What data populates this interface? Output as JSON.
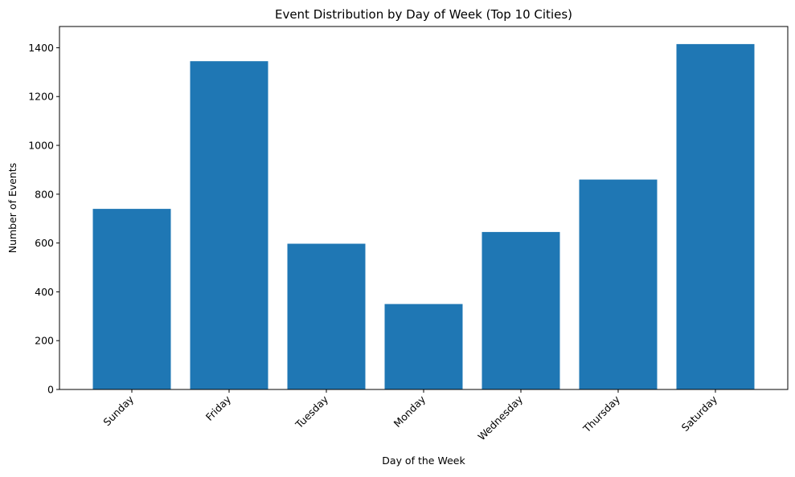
{
  "chart_data": {
    "type": "bar",
    "title": "Event Distribution by Day of Week (Top 10 Cities)",
    "xlabel": "Day of the Week",
    "ylabel": "Number of Events",
    "categories": [
      "Sunday",
      "Friday",
      "Tuesday",
      "Monday",
      "Wednesday",
      "Thursday",
      "Saturday"
    ],
    "values": [
      740,
      1345,
      597,
      350,
      645,
      860,
      1415
    ],
    "ylim": [
      0,
      1487
    ],
    "yticks": [
      0,
      200,
      400,
      600,
      800,
      1000,
      1200,
      1400
    ],
    "ytick_labels": [
      "0",
      "200",
      "400",
      "600",
      "800",
      "1000",
      "1200",
      "1400"
    ],
    "grid": false,
    "bar_color": "#1f77b4"
  }
}
